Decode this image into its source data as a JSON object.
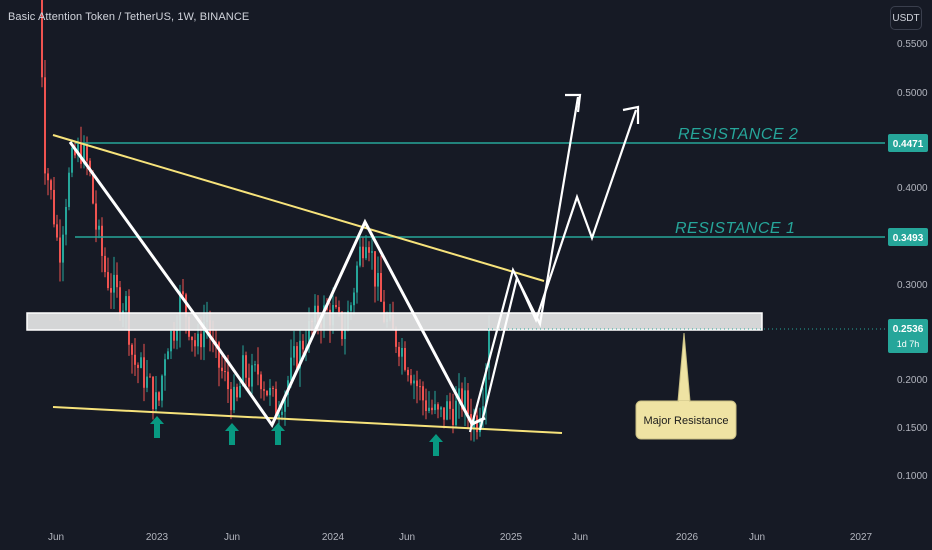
{
  "header": {
    "title": "Basic Attention Token / TetherUS, 1W, BINANCE",
    "currency": "USDT"
  },
  "chart_data": {
    "type": "candlestick",
    "price_ticks": [
      "0.5500",
      "0.5000",
      "0.4000",
      "0.3000",
      "0.2000",
      "0.1500",
      "0.1000"
    ],
    "time_ticks": [
      "Jun",
      "2023",
      "Jun",
      "2024",
      "Jun",
      "2025",
      "Jun",
      "2026",
      "Jun",
      "2027"
    ],
    "resistance_lines": [
      {
        "label": "RESISTANCE 2",
        "price": "0.4471"
      },
      {
        "label": "RESISTANCE 1",
        "price": "0.3493"
      }
    ],
    "current_price": {
      "price": "0.2536",
      "countdown": "1d 7h"
    },
    "major_resistance": {
      "label": "Major Resistance"
    },
    "colors": {
      "background": "#161a25",
      "up": "#26a69a",
      "down": "#ef5350",
      "resistance": "#26a69a",
      "trendline": "#f7e37b",
      "zone": "#e6e6e6",
      "callout": "#efe3a3",
      "arrow": "#089981"
    }
  }
}
